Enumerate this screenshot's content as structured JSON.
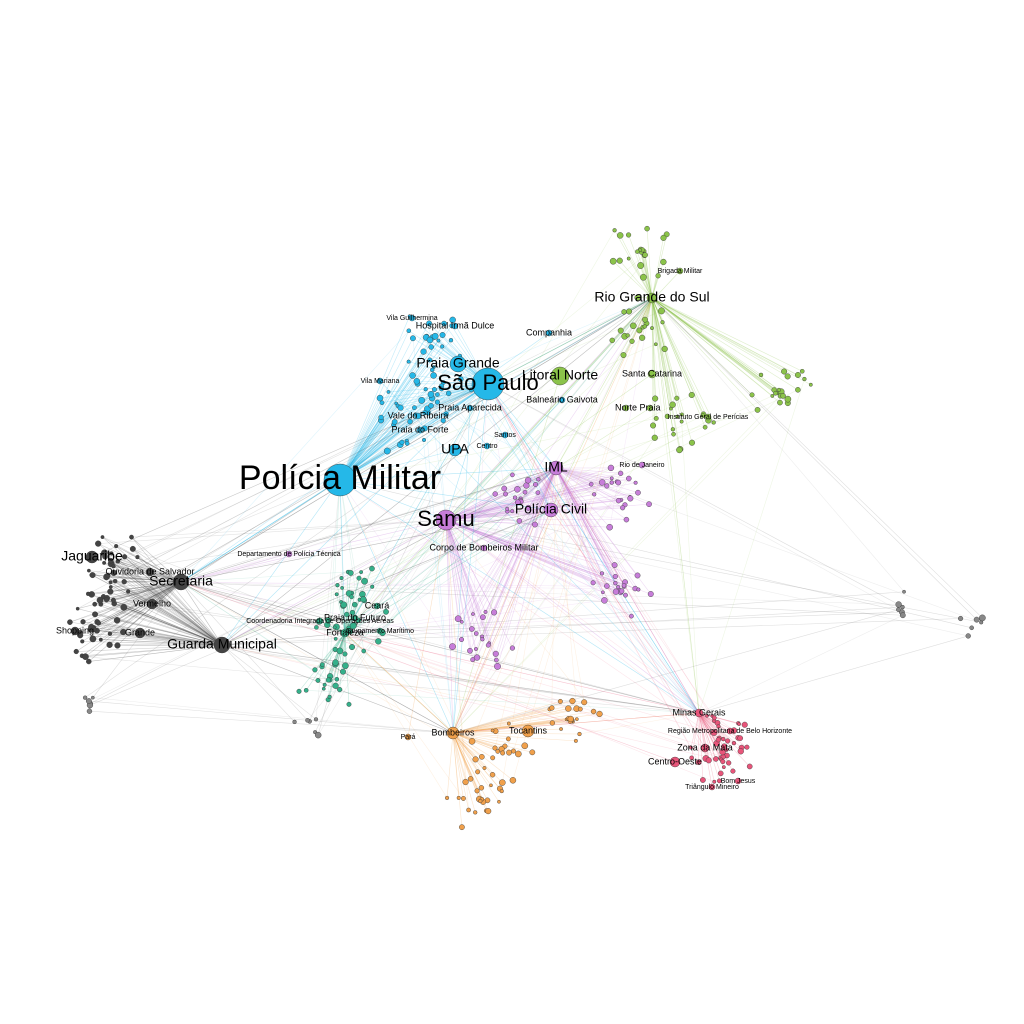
{
  "graph": {
    "clusters": [
      {
        "id": "sp",
        "color": "#25b8e8"
      },
      {
        "id": "south",
        "color": "#8bc34a"
      },
      {
        "id": "samu",
        "color": "#c77dd9"
      },
      {
        "id": "bombeiros",
        "color": "#f0a04b"
      },
      {
        "id": "mg",
        "color": "#e8557a"
      },
      {
        "id": "fortaleza",
        "color": "#34b08a"
      },
      {
        "id": "secretaria",
        "color": "#444444"
      },
      {
        "id": "misc",
        "color": "#888888"
      }
    ],
    "labels": [
      {
        "text": "Polícia Militar",
        "cluster": "sp",
        "size": "xxl"
      },
      {
        "text": "São Paulo",
        "cluster": "sp",
        "size": "xl"
      },
      {
        "text": "Praia Grande",
        "cluster": "sp",
        "size": "lg"
      },
      {
        "text": "Litoral Norte",
        "cluster": "south",
        "size": "lg"
      },
      {
        "text": "UPA",
        "cluster": "sp",
        "size": "lg"
      },
      {
        "text": "Samu",
        "cluster": "samu",
        "size": "xl"
      },
      {
        "text": "IML",
        "cluster": "samu",
        "size": "lg"
      },
      {
        "text": "Polícia Civil",
        "cluster": "samu",
        "size": "lg"
      },
      {
        "text": "Corpo de Bombeiros Militar",
        "cluster": "samu",
        "size": "md"
      },
      {
        "text": "Rio Grande do Sul",
        "cluster": "south",
        "size": "lg"
      },
      {
        "text": "Santa Catarina",
        "cluster": "south",
        "size": "md"
      },
      {
        "text": "Norte",
        "cluster": "south",
        "size": "md"
      },
      {
        "text": "Praia",
        "cluster": "south",
        "size": "md"
      },
      {
        "text": "Companhia",
        "cluster": "sp",
        "size": "md"
      },
      {
        "text": "Balneário Gaivota",
        "cluster": "sp",
        "size": "md"
      },
      {
        "text": "Vila Guilhermina",
        "cluster": "sp",
        "size": "sm"
      },
      {
        "text": "Hospital Irmã Dulce",
        "cluster": "sp",
        "size": "md"
      },
      {
        "text": "Vale do Ribeira",
        "cluster": "sp",
        "size": "md"
      },
      {
        "text": "Praia do Forte",
        "cluster": "sp",
        "size": "md"
      },
      {
        "text": "Praia Aparecida",
        "cluster": "sp",
        "size": "md"
      },
      {
        "text": "Secretaria",
        "cluster": "secretaria",
        "size": "lg"
      },
      {
        "text": "Guarda Municipal",
        "cluster": "secretaria",
        "size": "lg"
      },
      {
        "text": "Jaguaribe",
        "cluster": "secretaria",
        "size": "lg"
      },
      {
        "text": "Vermelho",
        "cluster": "secretaria",
        "size": "md"
      },
      {
        "text": "Grande",
        "cluster": "secretaria",
        "size": "md"
      },
      {
        "text": "Ouvidoria de Salvador",
        "cluster": "secretaria",
        "size": "md"
      },
      {
        "text": "Shopping",
        "cluster": "secretaria",
        "size": "md"
      },
      {
        "text": "Fortaleza",
        "cluster": "fortaleza",
        "size": "md"
      },
      {
        "text": "Praia do Futuro",
        "cluster": "fortaleza",
        "size": "md"
      },
      {
        "text": "Ceará",
        "cluster": "fortaleza",
        "size": "md"
      },
      {
        "text": "Bombeiros",
        "cluster": "bombeiros",
        "size": "md"
      },
      {
        "text": "Tocantins",
        "cluster": "bombeiros",
        "size": "md"
      },
      {
        "text": "Pará",
        "cluster": "bombeiros",
        "size": "sm"
      },
      {
        "text": "Minas Gerais",
        "cluster": "mg",
        "size": "md"
      },
      {
        "text": "Centro-Oeste",
        "cluster": "mg",
        "size": "md"
      },
      {
        "text": "Zona da Mata",
        "cluster": "mg",
        "size": "md"
      },
      {
        "text": "Região Metropolitana de Belo Horizonte",
        "cluster": "mg",
        "size": "sm"
      },
      {
        "text": "Bom Jesus",
        "cluster": "mg",
        "size": "sm"
      },
      {
        "text": "Triângulo Mineiro",
        "cluster": "mg",
        "size": "sm"
      },
      {
        "text": "Rio de Janeiro",
        "cluster": "samu",
        "size": "sm"
      },
      {
        "text": "Brigada Militar",
        "cluster": "south",
        "size": "sm"
      },
      {
        "text": "Instituto Geral de Perícias",
        "cluster": "south",
        "size": "sm"
      },
      {
        "text": "Departamento de Polícia Técnica",
        "cluster": "samu",
        "size": "sm"
      },
      {
        "text": "Coordenadoria Integrada de Operações Aéreas",
        "cluster": "fortaleza",
        "size": "sm"
      },
      {
        "text": "Grupamento Marítimo",
        "cluster": "fortaleza",
        "size": "sm"
      },
      {
        "text": "Vila Mariana",
        "cluster": "sp",
        "size": "sm"
      },
      {
        "text": "Centro",
        "cluster": "sp",
        "size": "sm"
      },
      {
        "text": "Santos",
        "cluster": "sp",
        "size": "sm"
      }
    ]
  }
}
